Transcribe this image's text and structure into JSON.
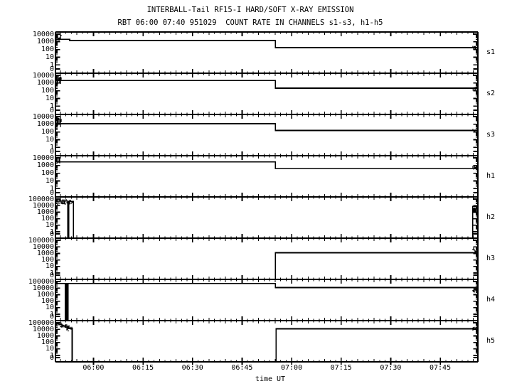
{
  "colors": {
    "foreground": "#000000",
    "background": "#ffffff"
  },
  "chart_data": {
    "type": "line",
    "title": "INTERBALL-Tail RF15-I HARD/SOFT X-RAY EMISSION",
    "subtitle": "RBT 06:00 07:40 951029  COUNT RATE IN CHANNELS s1-s3, h1-h5",
    "x_axis": {
      "label": "time UT",
      "unit": "minutes since 00:00 UT",
      "domain_minutes": [
        348.5,
        476.4
      ],
      "major_ticks": [
        {
          "t": 360,
          "label": "06:00"
        },
        {
          "t": 375,
          "label": "06:15"
        },
        {
          "t": 390,
          "label": "06:30"
        },
        {
          "t": 405,
          "label": "06:45"
        },
        {
          "t": 420,
          "label": "07:00"
        },
        {
          "t": 435,
          "label": "07:15"
        },
        {
          "t": 450,
          "label": "07:30"
        },
        {
          "t": 465,
          "label": "07:45"
        }
      ],
      "medium_tick_step_min": 5,
      "minor_tick_step_min": 1.6667
    },
    "y_axis": {
      "scale": "log",
      "quantity": "count rate"
    },
    "panels": [
      {
        "id": "s1",
        "label": "s1",
        "y_max": 10000,
        "y_tick_labels": [
          "10000",
          "1000",
          "100",
          "10",
          "1",
          "0"
        ],
        "trace": [
          [
            348.5,
            2100
          ],
          [
            352.8,
            1500
          ],
          [
            415.1,
            175
          ],
          [
            476.4,
            175
          ]
        ],
        "noise": [
          {
            "t0": 348.5,
            "t1": 350.2,
            "lo": 700,
            "hi": 13000
          },
          {
            "t0": 474.9,
            "t1": 476.4,
            "lo": 90,
            "hi": 350
          }
        ]
      },
      {
        "id": "s2",
        "label": "s2",
        "y_max": 10000,
        "y_tick_labels": [
          "10000",
          "1000",
          "100",
          "10",
          "1",
          "0"
        ],
        "trace": [
          [
            348.5,
            2100
          ],
          [
            415.1,
            215
          ],
          [
            476.4,
            215
          ]
        ],
        "noise": [
          {
            "t0": 348.5,
            "t1": 350.2,
            "lo": 500,
            "hi": 11000
          },
          {
            "t0": 474.9,
            "t1": 476.4,
            "lo": 110,
            "hi": 400
          }
        ]
      },
      {
        "id": "s3",
        "label": "s3",
        "y_max": 10000,
        "y_tick_labels": [
          "10000",
          "1000",
          "100",
          "10",
          "1",
          "0"
        ],
        "trace": [
          [
            348.5,
            1200
          ],
          [
            415.1,
            160
          ],
          [
            476.4,
            160
          ]
        ],
        "noise": [
          {
            "t0": 348.5,
            "t1": 350.2,
            "lo": 400,
            "hi": 10000
          },
          {
            "t0": 474.9,
            "t1": 476.4,
            "lo": 80,
            "hi": 300
          }
        ]
      },
      {
        "id": "h1",
        "label": "h1",
        "y_max": 10000,
        "y_tick_labels": [
          "10000",
          "1000",
          "100",
          "10",
          "1",
          "0"
        ],
        "trace": [
          [
            348.5,
            3000
          ],
          [
            415.1,
            400
          ],
          [
            476.4,
            400
          ]
        ],
        "noise": [
          {
            "t0": 348.5,
            "t1": 349.8,
            "lo": 1500,
            "hi": 9000
          },
          {
            "t0": 474.9,
            "t1": 476.4,
            "lo": 250,
            "hi": 900
          }
        ]
      },
      {
        "id": "h2",
        "label": "h2",
        "y_max": 100000,
        "y_tick_labels": [
          "100000",
          "10000",
          "1000",
          "100",
          "10",
          "1",
          "0"
        ],
        "trace": [
          [
            348.5,
            50000
          ],
          [
            352.2,
            0
          ],
          [
            352.5,
            45000
          ],
          [
            353.9,
            0
          ],
          [
            474.85,
            8000
          ],
          [
            476.4,
            8000
          ]
        ],
        "noise": [
          {
            "t0": 348.5,
            "t1": 352.2,
            "lo": 15000,
            "hi": 110000
          },
          {
            "t0": 352.5,
            "t1": 353.9,
            "lo": 15000,
            "hi": 95000
          },
          {
            "t0": 474.85,
            "t1": 476.4,
            "lo": 600,
            "hi": 20000
          }
        ]
      },
      {
        "id": "h3",
        "label": "h3",
        "y_max": 100000,
        "y_tick_labels": [
          "100000",
          "10000",
          "1000",
          "100",
          "10",
          "1",
          "0"
        ],
        "trace": [
          [
            348.5,
            0
          ],
          [
            415.1,
            1300
          ],
          [
            476.4,
            1300
          ]
        ],
        "noise": [
          {
            "t0": 475.0,
            "t1": 476.4,
            "lo": 900,
            "hi": 25000
          }
        ]
      },
      {
        "id": "h4",
        "label": "h4",
        "y_max": 100000,
        "y_tick_labels": [
          "100000",
          "10000",
          "1000",
          "100",
          "10",
          "1",
          "0"
        ],
        "trace": [
          [
            348.5,
            52000
          ],
          [
            351.5,
            0
          ],
          [
            351.75,
            52000
          ],
          [
            352.05,
            0
          ],
          [
            352.3,
            52000
          ],
          [
            415.1,
            12000
          ],
          [
            476.4,
            12000
          ]
        ],
        "noise": [
          {
            "t0": 474.8,
            "t1": 476.4,
            "lo": 2000,
            "hi": 16000
          }
        ]
      },
      {
        "id": "h5",
        "label": "h5",
        "y_max": 100000,
        "y_tick_labels": [
          "100000",
          "10000",
          "1000",
          "100",
          "10",
          "1",
          "0"
        ],
        "trace": [
          [
            348.5,
            80000
          ],
          [
            349.5,
            55000
          ],
          [
            350.5,
            35000
          ],
          [
            351.5,
            22000
          ],
          [
            352.5,
            14000
          ],
          [
            353.56,
            0
          ],
          [
            415.3,
            12000
          ],
          [
            476.4,
            12000
          ]
        ],
        "noise": [
          {
            "t0": 348.5,
            "t1": 350.5,
            "lo": 40000,
            "hi": 120000
          },
          {
            "t0": 350.0,
            "t1": 352.5,
            "lo": 12000,
            "hi": 70000
          },
          {
            "t0": 352.0,
            "t1": 353.56,
            "lo": 6000,
            "hi": 25000
          },
          {
            "t0": 474.9,
            "t1": 476.4,
            "lo": 3000,
            "hi": 25000
          }
        ]
      }
    ]
  }
}
